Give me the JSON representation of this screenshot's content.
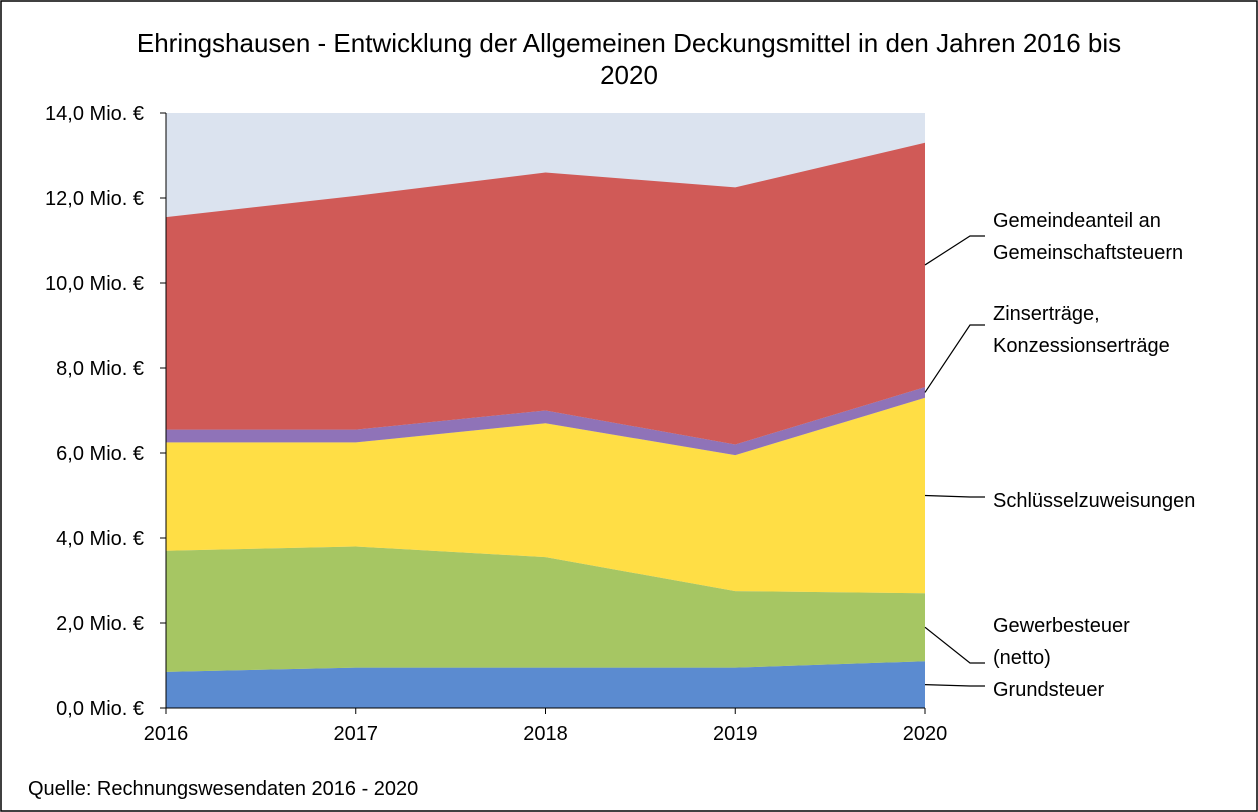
{
  "chart_data": {
    "type": "stacked_area",
    "title": "Ehringshausen - Entwicklung der Allgemeinen Deckungsmittel in den Jahren 2016 bis\n2020",
    "source": "Quelle: Rechnungswesendaten 2016 - 2020",
    "categories": [
      "2016",
      "2017",
      "2018",
      "2019",
      "2020"
    ],
    "series": [
      {
        "name": "Grundsteuer",
        "color": "#5b8bd0",
        "values": [
          0.85,
          0.95,
          0.95,
          0.95,
          1.1
        ]
      },
      {
        "name": "Gewerbesteuer\n(netto)",
        "color": "#a6c663",
        "values": [
          2.85,
          2.85,
          2.6,
          1.8,
          1.6
        ]
      },
      {
        "name": "Schlüsselzuweisungen",
        "color": "#ffde45",
        "values": [
          2.55,
          2.45,
          3.15,
          3.2,
          4.6
        ]
      },
      {
        "name": "Zinserträge,\nKonzessionserträge",
        "color": "#8f73b8",
        "values": [
          0.3,
          0.3,
          0.3,
          0.25,
          0.25
        ]
      },
      {
        "name": "Gemeindeanteil an\nGemeinschaftsteuern",
        "color": "#d05a57",
        "values": [
          5.0,
          5.5,
          5.6,
          6.05,
          5.75
        ]
      }
    ],
    "plot_background": "#dbe3ef",
    "ylim": [
      0,
      14
    ],
    "yticks": [
      {
        "value": 0,
        "label": "0,0 Mio. €"
      },
      {
        "value": 2,
        "label": "2,0 Mio. €"
      },
      {
        "value": 4,
        "label": "4,0 Mio. €"
      },
      {
        "value": 6,
        "label": "6,0 Mio. €"
      },
      {
        "value": 8,
        "label": "8,0 Mio. €"
      },
      {
        "value": 10,
        "label": "10,0 Mio. €"
      },
      {
        "value": 12,
        "label": "12,0 Mio. €"
      },
      {
        "value": 14,
        "label": "14,0 Mio. €"
      }
    ]
  }
}
